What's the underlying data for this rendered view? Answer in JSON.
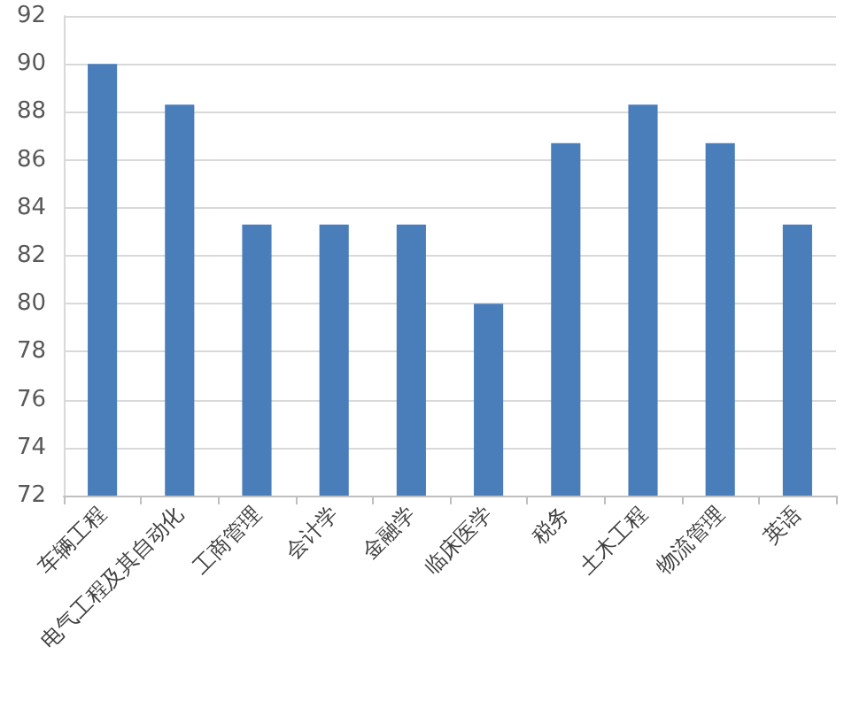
{
  "chart_data": {
    "type": "bar",
    "categories": [
      "车辆工程",
      "电气工程及其自动化",
      "工商管理",
      "会计学",
      "金融学",
      "临床医学",
      "税务",
      "土木工程",
      "物流管理",
      "英语"
    ],
    "values": [
      90,
      88.3,
      83.3,
      83.3,
      83.3,
      80,
      86.7,
      88.3,
      86.7,
      83.3
    ],
    "color": "#4a7ebb",
    "ylim": [
      72,
      92
    ],
    "yticks": [
      72,
      74,
      76,
      78,
      80,
      82,
      84,
      86,
      88,
      90,
      92
    ],
    "grid": "y"
  }
}
